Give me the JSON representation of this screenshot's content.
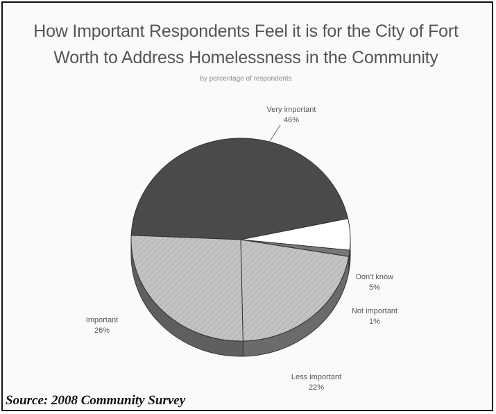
{
  "chart_data": {
    "type": "pie",
    "title_line1": "How Important Respondents Feel it is for the City of Fort",
    "title_line2": "Worth to Address Homelessness in the Community",
    "subtitle": "by percentage of respondents",
    "slices": [
      {
        "label": "Very important",
        "value_label": "46%",
        "value": 46,
        "color": "#4a4a4a"
      },
      {
        "label": "Don't know",
        "value_label": "5%",
        "value": 5,
        "color": "#ffffff"
      },
      {
        "label": "Not important",
        "value_label": "1%",
        "value": 1,
        "color": "#777777"
      },
      {
        "label": "Less important",
        "value_label": "22%",
        "value": 22,
        "color": "#bdbdbd"
      },
      {
        "label": "Important",
        "value_label": "26%",
        "value": 26,
        "color": "#c6c6c6"
      }
    ]
  },
  "source": "Source: 2008 Community Survey"
}
